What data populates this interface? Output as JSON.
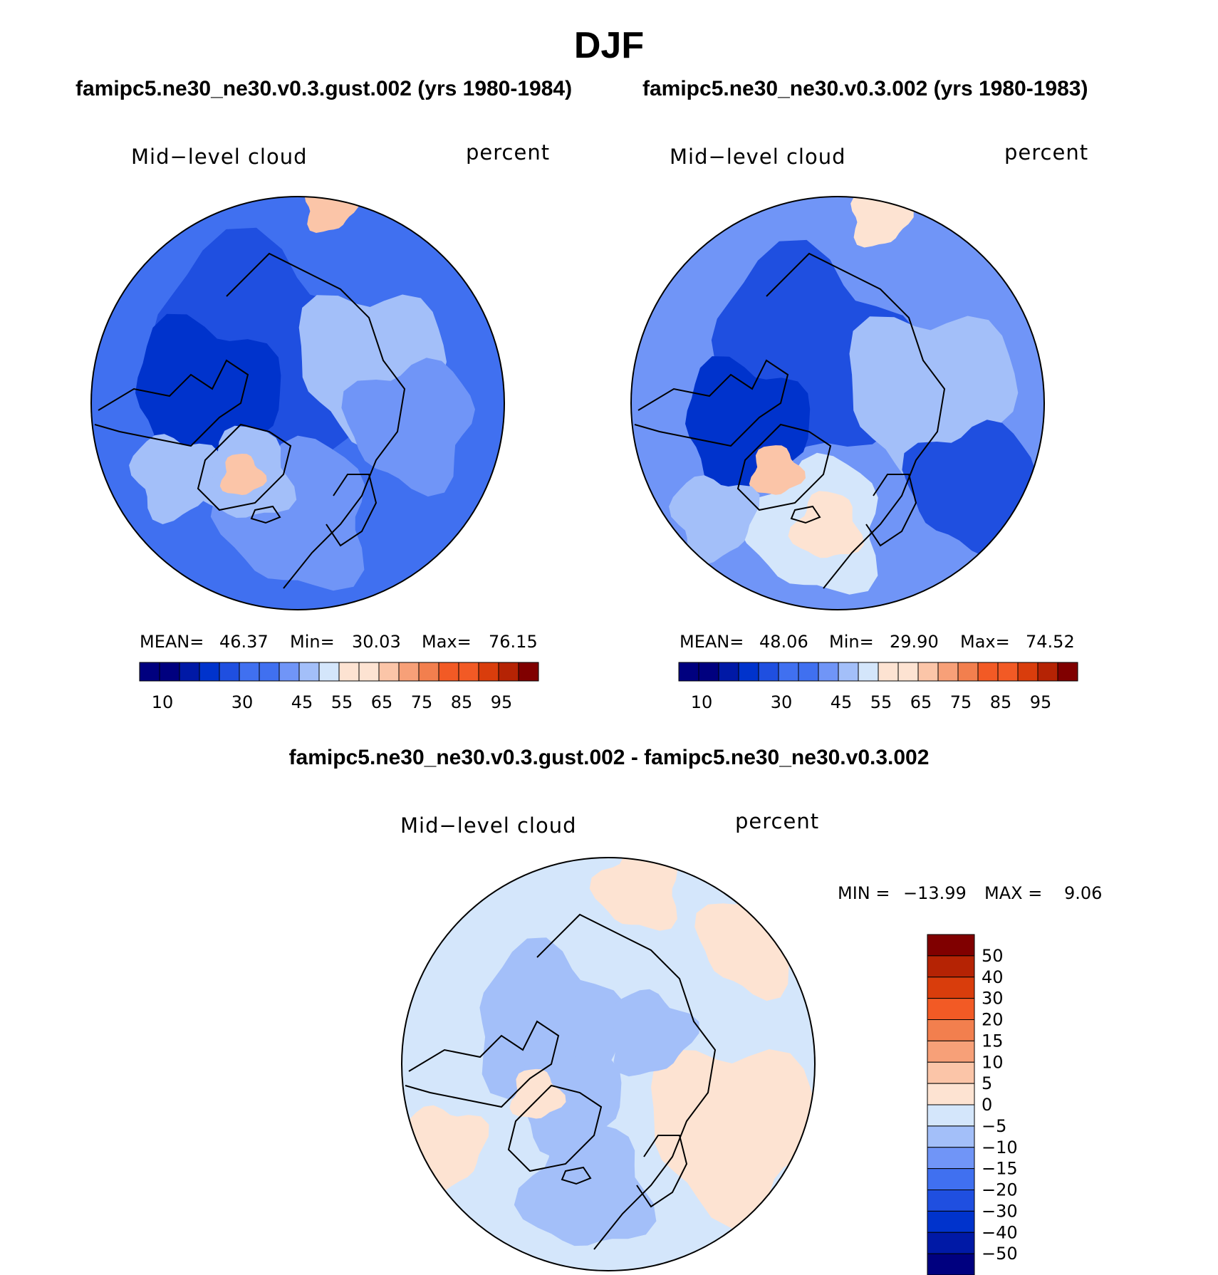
{
  "title": "DJF",
  "colors": {
    "cont_palette": [
      "#00007f",
      "#0019a6",
      "#0033cc",
      "#1f4fe0",
      "#4070f0",
      "#7095f7",
      "#a3bff9",
      "#d4e6fb",
      "#fde3d2",
      "#fbc5a8",
      "#f7a078",
      "#f27f4e",
      "#f25a25",
      "#d93d0c",
      "#b52304",
      "#800000"
    ],
    "diff_palette": [
      "#00007f",
      "#0019a6",
      "#0033cc",
      "#1f4fe0",
      "#4070f0",
      "#7095f7",
      "#a3bff9",
      "#d4e6fb",
      "#fde3d2",
      "#fbc5a8",
      "#f7a078",
      "#f27f4e",
      "#f25a25",
      "#d93d0c",
      "#b52304",
      "#800000"
    ],
    "background": "#ffffff",
    "coastline": "#000000"
  },
  "chart_data": [
    {
      "type": "heatmap",
      "projection": "north-polar-stereographic",
      "case_title": "famipc5.ne30_ne30.v0.3.gust.002 (yrs 1980-1984)",
      "left_label": "Mid−level cloud",
      "right_label": "percent",
      "stats": {
        "mean_label": "MEAN=",
        "mean": "46.37",
        "min_label": "Min=",
        "min": "30.03",
        "max_label": "Max=",
        "max": "76.15"
      },
      "colorbar_levels": [
        5,
        10,
        15,
        20,
        25,
        30,
        35,
        40,
        45,
        50,
        55,
        60,
        65,
        70,
        75,
        80,
        85,
        90,
        95
      ],
      "colorbar_tick_labels": [
        "10",
        "30",
        "45",
        "55",
        "65",
        "75",
        "85",
        "95"
      ],
      "orientation": "horizontal"
    },
    {
      "type": "heatmap",
      "projection": "north-polar-stereographic",
      "case_title": "famipc5.ne30_ne30.v0.3.002 (yrs 1980-1983)",
      "left_label": "Mid−level cloud",
      "right_label": "percent",
      "stats": {
        "mean_label": "MEAN=",
        "mean": "48.06",
        "min_label": "Min=",
        "min": "29.90",
        "max_label": "Max=",
        "max": "74.52"
      },
      "colorbar_levels": [
        5,
        10,
        15,
        20,
        25,
        30,
        35,
        40,
        45,
        50,
        55,
        60,
        65,
        70,
        75,
        80,
        85,
        90,
        95
      ],
      "colorbar_tick_labels": [
        "10",
        "30",
        "45",
        "55",
        "65",
        "75",
        "85",
        "95"
      ],
      "orientation": "horizontal"
    },
    {
      "type": "heatmap",
      "projection": "north-polar-stereographic",
      "case_title": "famipc5.ne30_ne30.v0.3.gust.002 - famipc5.ne30_ne30.v0.3.002",
      "left_label": "Mid−level cloud",
      "right_label": "percent",
      "stats": {
        "min_label": "MIN =",
        "min": "−13.99",
        "max_label": "MAX =",
        "max": "9.06"
      },
      "colorbar_tick_labels": [
        "50",
        "40",
        "30",
        "20",
        "15",
        "10",
        "5",
        "0",
        "−5",
        "−10",
        "−15",
        "−20",
        "−30",
        "−40",
        "−50"
      ],
      "orientation": "vertical"
    }
  ]
}
